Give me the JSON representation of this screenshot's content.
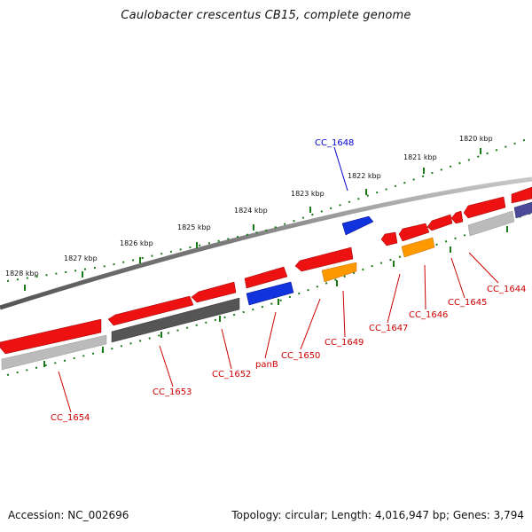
{
  "title": "Caulobacter crescentus CB15, complete genome",
  "footer": {
    "accession": "Accession: NC_002696",
    "topology": "Topology: circular; Length: 4,016,947 bp; Genes: 3,794"
  },
  "scale_labels": [
    "1828 kbp",
    "1827 kbp",
    "1826 kbp",
    "1825 kbp",
    "1824 kbp",
    "1823 kbp",
    "1822 kbp",
    "1821 kbp",
    "1820 kbp"
  ],
  "genes": [
    {
      "label": "CC_1654",
      "color": "#cc0000"
    },
    {
      "label": "CC_1653",
      "color": "#cc0000"
    },
    {
      "label": "CC_1652",
      "color": "#cc0000"
    },
    {
      "label": "panB",
      "color": "#cc0000"
    },
    {
      "label": "CC_1650",
      "color": "#cc0000"
    },
    {
      "label": "CC_1649",
      "color": "#cc0000"
    },
    {
      "label": "CC_1648",
      "color": "#0000cc"
    },
    {
      "label": "CC_1647",
      "color": "#cc0000"
    },
    {
      "label": "CC_1646",
      "color": "#cc0000"
    },
    {
      "label": "CC_1645",
      "color": "#cc0000"
    },
    {
      "label": "CC_1644",
      "color": "#cc0000"
    }
  ],
  "colors": {
    "cds_red": "#ee1111",
    "gene_blue": "#1133dd",
    "gene_orange": "#ff9900",
    "backbone_gray": "#888888",
    "tick_green": "#1a7a1a"
  }
}
